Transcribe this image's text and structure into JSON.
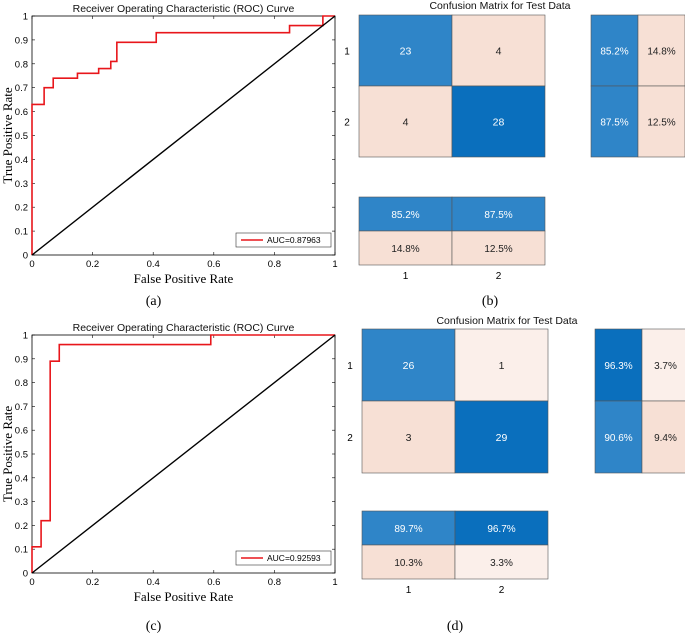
{
  "chart_data": [
    {
      "type": "line",
      "panel": "(a)",
      "title": "Receiver Operating Characteristic (ROC) Curve",
      "xlabel": "False Positive Rate",
      "ylabel": "True Positive Rate",
      "xlim": [
        0,
        1
      ],
      "ylim": [
        0,
        1
      ],
      "xticks": [
        "0",
        "0.2",
        "0.4",
        "0.6",
        "0.8",
        "1"
      ],
      "yticks": [
        "0",
        "0.1",
        "0.2",
        "0.3",
        "0.4",
        "0.5",
        "0.6",
        "0.7",
        "0.8",
        "0.9",
        "1"
      ],
      "legend": "AUC=0.87963",
      "legend_position": "bottom-right",
      "series": [
        {
          "name": "AUC=0.87963",
          "color": "#e8161b",
          "x": [
            0,
            0,
            0.04,
            0.04,
            0.07,
            0.07,
            0.15,
            0.15,
            0.22,
            0.22,
            0.26,
            0.26,
            0.28,
            0.28,
            0.41,
            0.41,
            0.85,
            0.85,
            0.96,
            0.96,
            1
          ],
          "y": [
            0,
            0.63,
            0.63,
            0.7,
            0.7,
            0.74,
            0.74,
            0.76,
            0.76,
            0.78,
            0.78,
            0.81,
            0.81,
            0.89,
            0.89,
            0.93,
            0.93,
            0.96,
            0.96,
            1,
            1
          ]
        },
        {
          "name": "chance",
          "color": "#000000",
          "x": [
            0,
            1
          ],
          "y": [
            0,
            1
          ]
        }
      ]
    },
    {
      "type": "heatmap",
      "panel": "(b)",
      "title": "Confusion Matrix for Test Data",
      "row_labels": [
        "1",
        "2"
      ],
      "col_labels": [
        "1",
        "2"
      ],
      "matrix": [
        [
          23,
          4
        ],
        [
          4,
          28
        ]
      ],
      "matrix_colors": [
        [
          "#2f85c8",
          "#f7e0d5"
        ],
        [
          "#f7e0d5",
          "#0a6fbd"
        ]
      ],
      "row_summary": [
        [
          "85.2%",
          "14.8%"
        ],
        [
          "87.5%",
          "12.5%"
        ]
      ],
      "row_summary_colors": [
        [
          "#2f85c8",
          "#f7e0d5"
        ],
        [
          "#2f85c8",
          "#f7e0d5"
        ]
      ],
      "col_summary": [
        [
          "85.2%",
          "87.5%"
        ],
        [
          "14.8%",
          "12.5%"
        ]
      ],
      "col_summary_colors": [
        [
          "#2f85c8",
          "#2f85c8"
        ],
        [
          "#f7e0d5",
          "#f7e0d5"
        ]
      ]
    },
    {
      "type": "line",
      "panel": "(c)",
      "title": "Receiver Operating Characteristic (ROC) Curve",
      "xlabel": "False Positive Rate",
      "ylabel": "True Positive Rate",
      "xlim": [
        0,
        1
      ],
      "ylim": [
        0,
        1
      ],
      "xticks": [
        "0",
        "0.2",
        "0.4",
        "0.6",
        "0.8",
        "1"
      ],
      "yticks": [
        "0",
        "0.1",
        "0.2",
        "0.3",
        "0.4",
        "0.5",
        "0.6",
        "0.7",
        "0.8",
        "0.9",
        "1"
      ],
      "legend": "AUC=0.92593",
      "legend_position": "bottom-right",
      "series": [
        {
          "name": "AUC=0.92593",
          "color": "#e8161b",
          "x": [
            0,
            0,
            0.03,
            0.03,
            0.06,
            0.06,
            0.09,
            0.09,
            0.59,
            0.59,
            1
          ],
          "y": [
            0,
            0.11,
            0.11,
            0.22,
            0.22,
            0.89,
            0.89,
            0.96,
            0.96,
            1,
            1
          ]
        },
        {
          "name": "chance",
          "color": "#000000",
          "x": [
            0,
            1
          ],
          "y": [
            0,
            1
          ]
        }
      ]
    },
    {
      "type": "heatmap",
      "panel": "(d)",
      "title": "Confusion Matrix for Test Data",
      "row_labels": [
        "1",
        "2"
      ],
      "col_labels": [
        "1",
        "2"
      ],
      "matrix": [
        [
          26,
          1
        ],
        [
          3,
          29
        ]
      ],
      "matrix_colors": [
        [
          "#2f85c8",
          "#fbefea"
        ],
        [
          "#f7e0d5",
          "#0a6fbd"
        ]
      ],
      "row_summary": [
        [
          "96.3%",
          "3.7%"
        ],
        [
          "90.6%",
          "9.4%"
        ]
      ],
      "row_summary_colors": [
        [
          "#0a6fbd",
          "#fbefea"
        ],
        [
          "#2f85c8",
          "#f7e0d5"
        ]
      ],
      "col_summary": [
        [
          "89.7%",
          "96.7%"
        ],
        [
          "10.3%",
          "3.3%"
        ]
      ],
      "col_summary_colors": [
        [
          "#2f85c8",
          "#0a6fbd"
        ],
        [
          "#f7e0d5",
          "#fbefea"
        ]
      ]
    }
  ]
}
